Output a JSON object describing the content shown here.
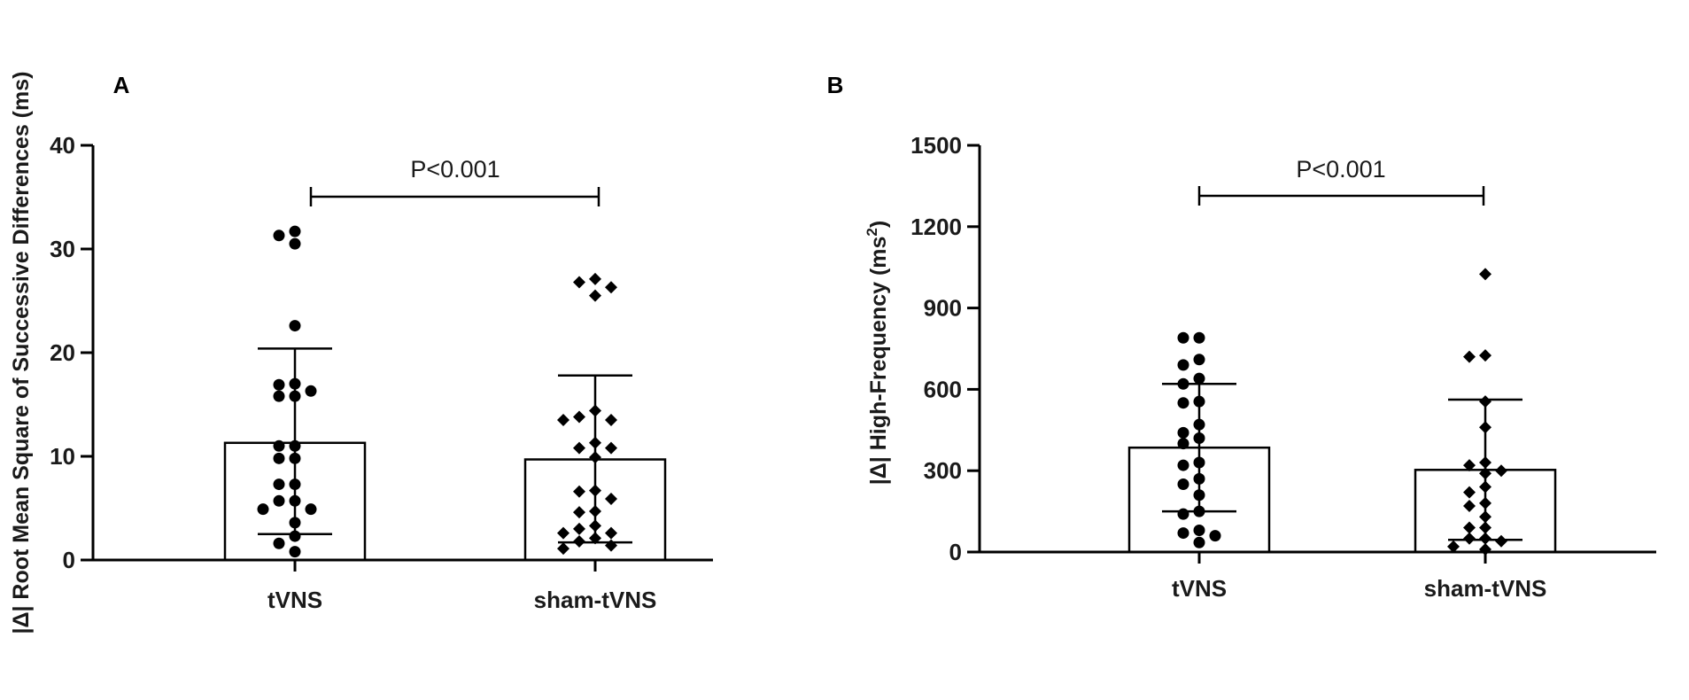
{
  "chart_data": [
    {
      "panel_label": "A",
      "type": "bar",
      "ylabel": "|Δ| Root Mean Square of Successive Differences (ms)",
      "ylim": [
        0,
        40
      ],
      "yticks": [
        0,
        10,
        20,
        30,
        40
      ],
      "categories": [
        "tVNS",
        "sham-tVNS"
      ],
      "means": [
        11.3,
        9.7
      ],
      "sd_upper": [
        20.4,
        17.8
      ],
      "sd_lower": [
        2.5,
        1.7
      ],
      "points": [
        [
          31.7,
          31.3,
          30.5,
          22.6,
          17.0,
          16.9,
          16.3,
          15.8,
          15.8,
          11.0,
          11.0,
          9.8,
          9.8,
          7.3,
          7.3,
          5.7,
          5.7,
          4.9,
          4.9,
          3.6,
          2.3,
          1.6,
          0.8
        ],
        [
          27.1,
          26.8,
          26.3,
          25.5,
          14.4,
          13.8,
          13.5,
          13.5,
          11.3,
          10.8,
          10.8,
          9.9,
          6.7,
          6.6,
          5.9,
          4.7,
          4.6,
          3.3,
          3.0,
          2.6,
          2.6,
          2.1,
          1.8,
          1.4,
          1.1
        ]
      ],
      "point_markers": [
        "circle",
        "diamond"
      ],
      "annotation": "P<0.001"
    },
    {
      "panel_label": "B",
      "type": "bar",
      "ylabel": "|Δ| High-Frequency (ms",
      "ylabel_sup": "2",
      "ylabel_tail": ")",
      "ylim": [
        0,
        1500
      ],
      "yticks": [
        0,
        300,
        600,
        900,
        1200,
        1500
      ],
      "categories": [
        "tVNS",
        "sham-tVNS"
      ],
      "means": [
        385,
        303
      ],
      "sd_upper": [
        620,
        562
      ],
      "sd_lower": [
        150,
        45
      ],
      "points": [
        [
          790,
          790,
          710,
          690,
          640,
          620,
          555,
          550,
          470,
          440,
          420,
          400,
          330,
          320,
          270,
          250,
          210,
          150,
          140,
          80,
          70,
          60,
          35
        ],
        [
          1025,
          725,
          720,
          555,
          460,
          330,
          320,
          300,
          290,
          240,
          220,
          180,
          170,
          130,
          90,
          90,
          50,
          50,
          40,
          20,
          10
        ]
      ],
      "point_markers": [
        "circle",
        "diamond"
      ],
      "annotation": "P<0.001"
    }
  ]
}
